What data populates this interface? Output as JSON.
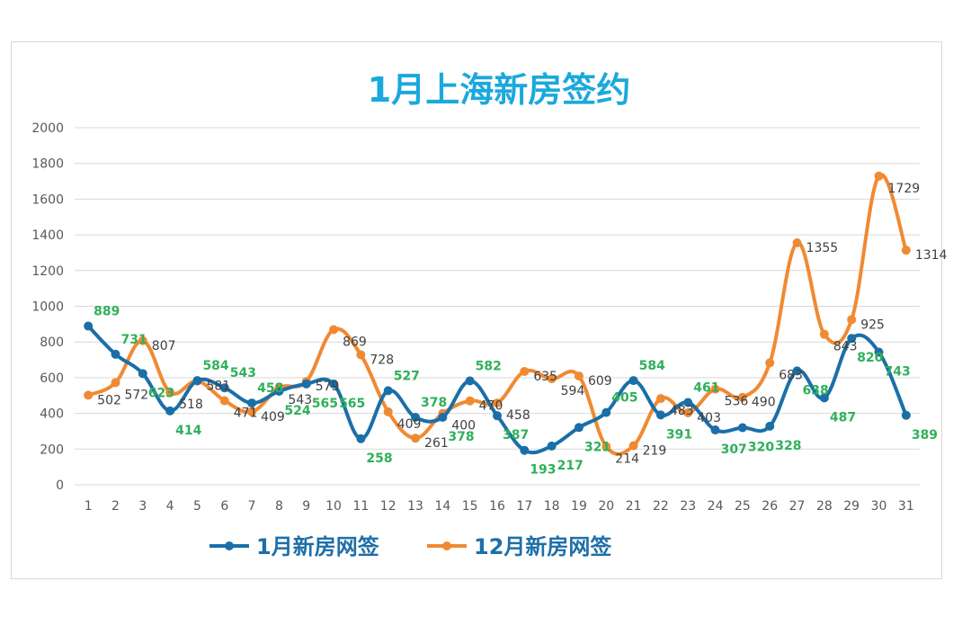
{
  "chart_data": {
    "type": "line",
    "title": "1月上海新房签约",
    "categories": [
      "1",
      "2",
      "3",
      "4",
      "5",
      "6",
      "7",
      "8",
      "9",
      "10",
      "11",
      "12",
      "13",
      "14",
      "15",
      "16",
      "17",
      "18",
      "19",
      "20",
      "21",
      "22",
      "23",
      "24",
      "25",
      "26",
      "27",
      "28",
      "29",
      "30",
      "31"
    ],
    "ylim": [
      0,
      2000
    ],
    "yticks": [
      "0",
      "200",
      "400",
      "600",
      "800",
      "1000",
      "1200",
      "1400",
      "1600",
      "1800",
      "2000"
    ],
    "grid": true,
    "legend_position": "bottom",
    "series": [
      {
        "name": "1月新房网签",
        "color": "#1a6fa8",
        "values": [
          889,
          731,
          623,
          414,
          584,
          543,
          458,
          524,
          565,
          565,
          258,
          527,
          378,
          378,
          582,
          387,
          193,
          217,
          321,
          405,
          584,
          391,
          461,
          307,
          320,
          328,
          638,
          487,
          820,
          743,
          389
        ],
        "labels": [
          "889",
          "731",
          "623",
          "414",
          "584",
          "543",
          "458",
          "524",
          "565",
          "565",
          "258",
          "527",
          "378",
          "378",
          "582",
          "387",
          "193",
          "217",
          "321",
          "405",
          "584",
          "391",
          "461",
          "307",
          "320",
          "328",
          "638",
          "487",
          "820",
          "743",
          "389"
        ]
      },
      {
        "name": "12月新房网签",
        "color": "#ef8a33",
        "values": [
          502,
          572,
          807,
          518,
          581,
          471,
          409,
          543,
          579,
          869,
          728,
          409,
          261,
          400,
          470,
          458,
          635,
          594,
          609,
          214,
          219,
          483,
          403,
          536,
          490,
          683,
          1355,
          843,
          925,
          1729,
          1314
        ],
        "labels": [
          "502",
          "572",
          "807",
          "518",
          "581",
          "471",
          "409",
          "543",
          "579",
          "869",
          "728",
          "409",
          "261",
          "400",
          "470",
          "458",
          "635",
          "594",
          "609",
          "214",
          "219",
          "483",
          "403",
          "536",
          "490",
          "683",
          "1355",
          "843",
          "925",
          "1729",
          "1314"
        ]
      }
    ]
  }
}
